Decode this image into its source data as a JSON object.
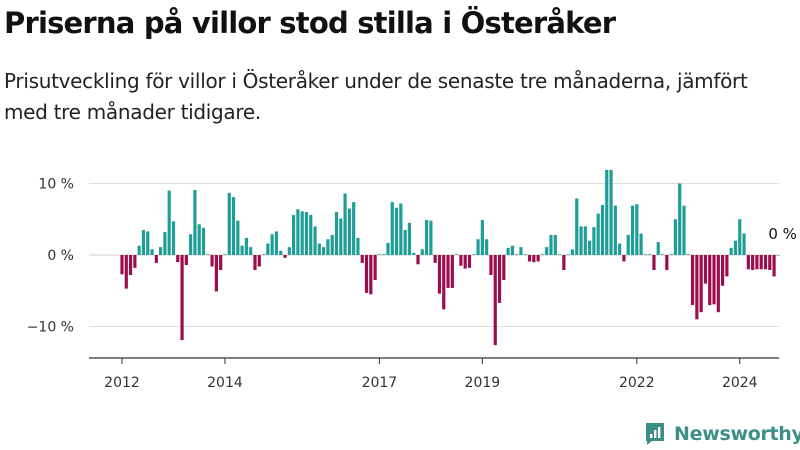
{
  "title": "Priserna på villor stod stilla i Österåker",
  "subtitle": "Prisutveckling för villor i Österåker under de senaste tre månaderna, jämfört med tre månader tidigare.",
  "brand": {
    "name": "Newsworthy",
    "icon": "bar-chart-logo-icon",
    "color": "#3d8f88"
  },
  "chart_data": {
    "type": "bar",
    "title": "Priserna på villor stod stilla i Österåker",
    "subtitle": "Prisutveckling för villor i Österåker under de senaste tre månaderna, jämfört med tre månader tidigare.",
    "ylim": [
      -14,
      12
    ],
    "y_ticks": [
      10,
      0,
      -10
    ],
    "y_tick_labels": [
      "10 %",
      "0 %",
      "−10 %"
    ],
    "x_ticks": [
      2012,
      2014,
      2017,
      2019,
      2022,
      2024
    ],
    "x_tick_labels": [
      "2012",
      "2014",
      "2017",
      "2019",
      "2022",
      "2024"
    ],
    "start": "2012-01",
    "frequency": "monthly",
    "grid": true,
    "colors": {
      "positive": "#1f9e96",
      "negative": "#9b0e4e"
    },
    "annotation": {
      "label": "0 %",
      "target": "latest value"
    },
    "values": [
      -2.7,
      -4.7,
      -2.8,
      -1.8,
      1.3,
      3.5,
      3.3,
      0.8,
      -1.1,
      1.1,
      3.2,
      9.0,
      4.7,
      -1.0,
      -11.9,
      -1.4,
      2.9,
      9.1,
      4.3,
      3.8,
      0.1,
      -1.6,
      -5.1,
      -2.1,
      0.1,
      8.7,
      8.1,
      4.8,
      1.3,
      2.4,
      1.1,
      -2.1,
      -1.6,
      0.1,
      1.6,
      2.9,
      3.3,
      0.6,
      -0.4,
      1.1,
      5.6,
      6.4,
      6.1,
      6.0,
      5.6,
      4.0,
      1.6,
      1.1,
      2.2,
      2.8,
      6.0,
      5.1,
      8.6,
      6.5,
      7.4,
      2.4,
      -1.1,
      -5.3,
      -5.5,
      -3.5,
      0.1,
      0.1,
      1.7,
      7.4,
      6.6,
      7.2,
      3.5,
      4.5,
      0.3,
      -1.3,
      0.8,
      4.9,
      4.8,
      -1.1,
      -5.4,
      -7.6,
      -4.6,
      -4.6,
      0.1,
      -1.5,
      -1.9,
      -1.8,
      0.1,
      2.2,
      4.9,
      2.2,
      -2.8,
      -12.6,
      -6.7,
      -3.5,
      1.0,
      1.3,
      0.1,
      1.1,
      0.1,
      -0.9,
      -1.0,
      -0.9,
      0.1,
      1.1,
      2.8,
      2.8,
      0.1,
      -2.1,
      0.1,
      0.8,
      7.9,
      4.0,
      4.0,
      2.0,
      3.9,
      5.8,
      7.0,
      11.9,
      11.9,
      6.9,
      1.6,
      -0.9,
      2.8,
      6.9,
      7.1,
      3.0,
      0.1,
      0.1,
      -2.1,
      1.8,
      0.1,
      -2.1,
      0.1,
      5.0,
      10.0,
      6.9,
      0.1,
      -7.0,
      -9.0,
      -8.0,
      -4.0,
      -7.0,
      -6.9,
      -8.0,
      -4.3,
      -3.0,
      1.0,
      2.0,
      5.0,
      3.0,
      -2.0,
      -2.1,
      -2.0,
      -2.0,
      -2.0,
      -2.1,
      -3.0,
      0.0
    ]
  }
}
